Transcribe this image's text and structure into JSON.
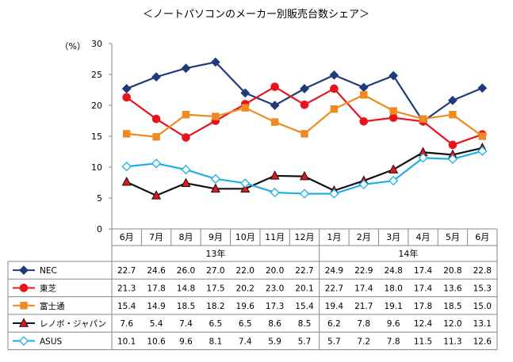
{
  "chart_data": {
    "type": "line",
    "title": "＜ノートパソコンのメーカー別販売台数シェア＞",
    "ylabel": "（%）",
    "ylim": [
      0,
      30
    ],
    "yticks": [
      0,
      5,
      10,
      15,
      20,
      25,
      30
    ],
    "grid": false,
    "legend": "data-table-left",
    "categories": [
      "6月",
      "7月",
      "8月",
      "9月",
      "10月",
      "11月",
      "12月",
      "1月",
      "2月",
      "3月",
      "4月",
      "5月",
      "6月"
    ],
    "year_groups": [
      {
        "label": "13年",
        "start": 0,
        "end": 6
      },
      {
        "label": "14年",
        "start": 7,
        "end": 12
      }
    ],
    "series": [
      {
        "name": "NEC",
        "color": "#1f3c78",
        "marker": "diamond-filled",
        "values": [
          22.7,
          24.6,
          26.0,
          27.0,
          22.0,
          20.0,
          22.7,
          24.9,
          22.9,
          24.8,
          17.4,
          20.8,
          22.8
        ]
      },
      {
        "name": "東芝",
        "color": "#e8141c",
        "marker": "circle-filled",
        "values": [
          21.3,
          17.8,
          14.8,
          17.5,
          20.2,
          23.0,
          20.1,
          22.7,
          17.4,
          18.0,
          17.4,
          13.6,
          15.3
        ]
      },
      {
        "name": "富士通",
        "color": "#ef8a22",
        "marker": "square-filled",
        "values": [
          15.4,
          14.9,
          18.5,
          18.2,
          19.6,
          17.3,
          15.4,
          19.4,
          21.7,
          19.1,
          17.8,
          18.5,
          15.0
        ]
      },
      {
        "name": "レノボ・ジャパン",
        "color": "#111111",
        "marker": "triangle-red",
        "values": [
          7.6,
          5.4,
          7.4,
          6.5,
          6.5,
          8.6,
          8.5,
          6.2,
          7.8,
          9.6,
          12.4,
          12.0,
          13.1
        ]
      },
      {
        "name": "ASUS",
        "color": "#1eaee8",
        "marker": "diamond-open",
        "values": [
          10.1,
          10.6,
          9.6,
          8.1,
          7.4,
          5.9,
          5.7,
          5.7,
          7.2,
          7.8,
          11.5,
          11.3,
          12.6
        ]
      }
    ]
  }
}
